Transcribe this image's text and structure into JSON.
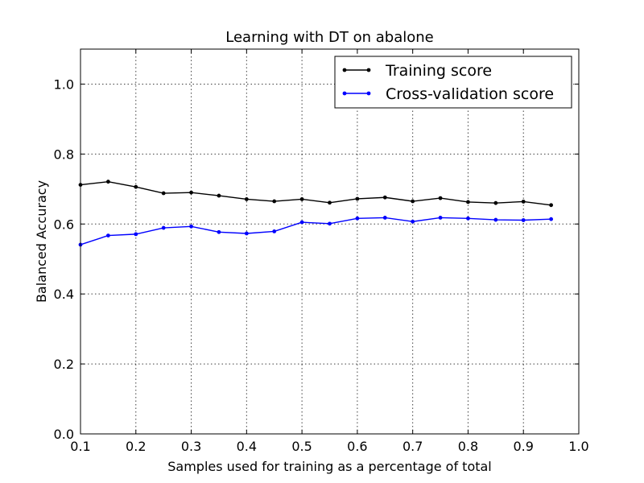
{
  "chart_data": {
    "type": "line",
    "title": "Learning with DT on abalone",
    "xlabel": "Samples used for training as a percentage of total",
    "ylabel": "Balanced Accuracy",
    "xlim": [
      0.1,
      1.0
    ],
    "ylim": [
      0.0,
      1.1
    ],
    "x_ticks": [
      "0.1",
      "0.2",
      "0.3",
      "0.4",
      "0.5",
      "0.6",
      "0.7",
      "0.8",
      "0.9",
      "1.0"
    ],
    "y_ticks": [
      "0.0",
      "0.2",
      "0.4",
      "0.6",
      "0.8",
      "1.0"
    ],
    "grid": true,
    "legend_position": "top-right",
    "x": [
      0.1,
      0.15,
      0.2,
      0.25,
      0.3,
      0.35,
      0.4,
      0.45,
      0.5,
      0.55,
      0.6,
      0.65,
      0.7,
      0.75,
      0.8,
      0.85,
      0.9,
      0.95
    ],
    "series": [
      {
        "name": "Training score",
        "color": "#000000",
        "values": [
          0.712,
          0.721,
          0.706,
          0.688,
          0.69,
          0.681,
          0.671,
          0.665,
          0.671,
          0.661,
          0.672,
          0.676,
          0.665,
          0.674,
          0.663,
          0.66,
          0.664,
          0.654
        ]
      },
      {
        "name": "Cross-validation score",
        "color": "#0000ff",
        "values": [
          0.541,
          0.567,
          0.571,
          0.589,
          0.593,
          0.577,
          0.573,
          0.579,
          0.605,
          0.601,
          0.616,
          0.618,
          0.607,
          0.618,
          0.616,
          0.612,
          0.611,
          0.614
        ]
      }
    ]
  }
}
